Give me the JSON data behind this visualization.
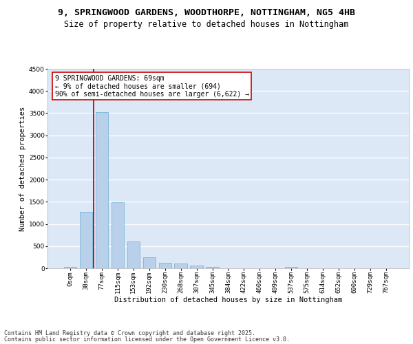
{
  "title_line1": "9, SPRINGWOOD GARDENS, WOODTHORPE, NOTTINGHAM, NG5 4HB",
  "title_line2": "Size of property relative to detached houses in Nottingham",
  "xlabel": "Distribution of detached houses by size in Nottingham",
  "ylabel": "Number of detached properties",
  "bar_labels": [
    "0sqm",
    "38sqm",
    "77sqm",
    "115sqm",
    "153sqm",
    "192sqm",
    "230sqm",
    "268sqm",
    "307sqm",
    "345sqm",
    "384sqm",
    "422sqm",
    "460sqm",
    "499sqm",
    "537sqm",
    "575sqm",
    "614sqm",
    "652sqm",
    "690sqm",
    "729sqm",
    "767sqm"
  ],
  "bar_values": [
    30,
    1280,
    3530,
    1490,
    600,
    255,
    120,
    110,
    65,
    30,
    5,
    0,
    0,
    0,
    35,
    0,
    0,
    0,
    0,
    0,
    0
  ],
  "bar_color": "#b8d0ea",
  "bar_edge_color": "#6aaed6",
  "property_label": "9 SPRINGWOOD GARDENS: 69sqm",
  "annotation_line2": "← 9% of detached houses are smaller (694)",
  "annotation_line3": "90% of semi-detached houses are larger (6,622) →",
  "vline_color": "#cc0000",
  "annotation_box_edge": "#cc0000",
  "annotation_box_face": "#ffffff",
  "ylim": [
    0,
    4500
  ],
  "yticks": [
    0,
    500,
    1000,
    1500,
    2000,
    2500,
    3000,
    3500,
    4000,
    4500
  ],
  "background_color": "#dce8f5",
  "grid_color": "#ffffff",
  "fig_background": "#ffffff",
  "footer_line1": "Contains HM Land Registry data © Crown copyright and database right 2025.",
  "footer_line2": "Contains public sector information licensed under the Open Government Licence v3.0.",
  "title_fontsize": 9.5,
  "subtitle_fontsize": 8.5,
  "axis_label_fontsize": 7.5,
  "tick_fontsize": 6.5,
  "annotation_fontsize": 7,
  "footer_fontsize": 6
}
